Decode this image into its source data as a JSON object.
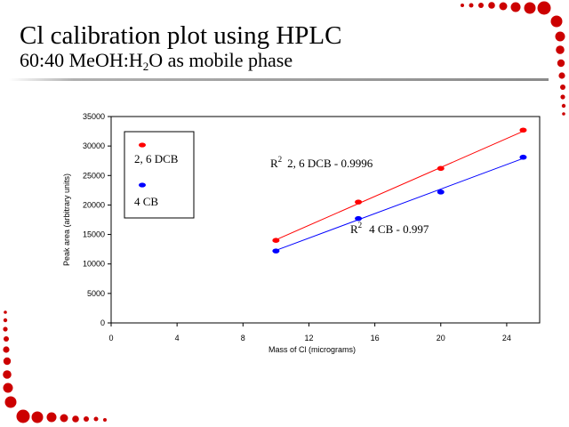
{
  "slide": {
    "title": "Cl calibration plot using HPLC",
    "subtitle_pre": "60:40 MeOH:H",
    "subtitle_sub": "2",
    "subtitle_post": "O as mobile phase"
  },
  "colors": {
    "accent_dots": "#cc0000",
    "series_2_6_dcb": "#ff0000",
    "series_4_cb": "#0000ff"
  },
  "chart_data": {
    "type": "scatter",
    "title": "",
    "xlabel": "Mass of Cl (micrograms)",
    "ylabel": "Peak area (arbitrary units)",
    "xlim": [
      0,
      26
    ],
    "ylim": [
      0,
      35000
    ],
    "xticks": [
      0,
      4,
      8,
      12,
      16,
      20,
      24
    ],
    "yticks": [
      0,
      5000,
      10000,
      15000,
      20000,
      25000,
      30000,
      35000
    ],
    "grid": false,
    "legend_position": "top-left",
    "series": [
      {
        "name": "2, 6 DCB",
        "color": "#ff0000",
        "x": [
          10,
          15,
          20,
          25
        ],
        "y": [
          14000,
          20500,
          26200,
          32700
        ],
        "trendline": [
          [
            10,
            14100
          ],
          [
            25,
            32500
          ]
        ]
      },
      {
        "name": "4 CB",
        "color": "#0000ff",
        "x": [
          10,
          15,
          20,
          25
        ],
        "y": [
          12200,
          17700,
          22200,
          28100
        ],
        "trendline": [
          [
            10,
            12300
          ],
          [
            25,
            27900
          ]
        ]
      }
    ],
    "annotations": [
      {
        "r_label": "R",
        "r_sup": "2",
        "text": "2, 6 DCB - 0.9996"
      },
      {
        "r_label": "R",
        "r_sup": "2",
        "text": "4 CB - 0.997"
      }
    ]
  }
}
